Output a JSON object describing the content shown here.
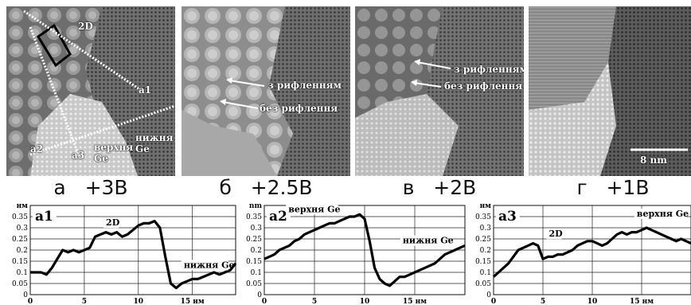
{
  "panels": [
    {
      "id": "a",
      "label": "а   +3В",
      "annotations": {
        "twoD": "2D",
        "a1": "a1",
        "a2": "a2",
        "a3": "a3",
        "upper": "верхня\nGe",
        "lower": "нижня\nGe"
      }
    },
    {
      "id": "b",
      "label": "б   +2.5В",
      "annotations": {
        "with": "з рифленням",
        "without": "без рифлення"
      }
    },
    {
      "id": "v",
      "label": "в   +2В",
      "annotations": {
        "with": "з рифленням",
        "without": "без рифлення"
      }
    },
    {
      "id": "g",
      "label": "г   +1В",
      "annotations": {
        "scale": "8 nm"
      }
    }
  ],
  "chart_data": [
    {
      "type": "line",
      "profile_label": "a1",
      "ylabel": "нм",
      "xunit": "нм",
      "xlim": [
        0,
        19
      ],
      "ylim": [
        0,
        0.4
      ],
      "xticks": [
        {
          "v": 0,
          "t": "0"
        },
        {
          "v": 5,
          "t": "5"
        },
        {
          "v": 10,
          "t": "10"
        },
        {
          "v": 15,
          "t": "15 нм"
        }
      ],
      "yticks": [
        {
          "v": 0,
          "t": "0"
        },
        {
          "v": 0.05,
          "t": "0.05"
        },
        {
          "v": 0.1,
          "t": "0.1"
        },
        {
          "v": 0.15,
          "t": "0.15"
        },
        {
          "v": 0.2,
          "t": "0.2"
        },
        {
          "v": 0.25,
          "t": "0.25"
        },
        {
          "v": 0.3,
          "t": "0.3"
        },
        {
          "v": 0.35,
          "t": "0.35"
        },
        {
          "v": 0.4,
          "t": "нм"
        }
      ],
      "annotations": [
        {
          "text": "2D",
          "x": 7,
          "y": 0.31
        },
        {
          "text": "нижня Ge",
          "x": 14.2,
          "y": 0.12
        }
      ],
      "x": [
        0,
        0.5,
        1,
        1.5,
        2,
        2.5,
        3,
        3.5,
        4,
        4.5,
        5,
        5.5,
        6,
        6.5,
        7,
        7.5,
        8,
        8.5,
        9,
        9.5,
        10,
        10.5,
        11,
        11.5,
        12,
        12.5,
        13,
        13.5,
        14,
        14.5,
        15,
        15.5,
        16,
        16.5,
        17,
        17.5,
        18,
        18.5,
        19
      ],
      "values": [
        0.1,
        0.1,
        0.1,
        0.09,
        0.12,
        0.16,
        0.2,
        0.19,
        0.2,
        0.19,
        0.2,
        0.21,
        0.26,
        0.27,
        0.28,
        0.27,
        0.28,
        0.26,
        0.27,
        0.29,
        0.31,
        0.32,
        0.32,
        0.33,
        0.3,
        0.17,
        0.05,
        0.03,
        0.05,
        0.06,
        0.07,
        0.07,
        0.08,
        0.09,
        0.1,
        0.09,
        0.1,
        0.11,
        0.14
      ]
    },
    {
      "type": "line",
      "profile_label": "a2",
      "ylabel": "nm",
      "xunit": "нм",
      "xlim": [
        0,
        20
      ],
      "ylim": [
        0,
        0.4
      ],
      "xticks": [
        {
          "v": 0,
          "t": "0"
        },
        {
          "v": 5,
          "t": "5"
        },
        {
          "v": 10,
          "t": "10"
        },
        {
          "v": 15,
          "t": "15 нм"
        }
      ],
      "yticks": [
        {
          "v": 0,
          "t": "0"
        },
        {
          "v": 0.05,
          "t": "0.05"
        },
        {
          "v": 0.1,
          "t": "0.1"
        },
        {
          "v": 0.15,
          "t": "0.15"
        },
        {
          "v": 0.2,
          "t": "0.2"
        },
        {
          "v": 0.25,
          "t": "0.25"
        },
        {
          "v": 0.3,
          "t": "0.3"
        },
        {
          "v": 0.35,
          "t": "0.35"
        },
        {
          "v": 0.4,
          "t": "nm"
        }
      ],
      "annotations": [
        {
          "text": "верхня Ge",
          "x": 2.4,
          "y": 0.37
        },
        {
          "text": "нижня Ge",
          "x": 13.8,
          "y": 0.23
        }
      ],
      "x": [
        0,
        0.5,
        1,
        1.5,
        2,
        2.5,
        3,
        3.5,
        4,
        4.5,
        5,
        5.5,
        6,
        6.5,
        7,
        7.5,
        8,
        8.5,
        9,
        9.5,
        10,
        10.5,
        11,
        11.5,
        12,
        12.5,
        13,
        13.5,
        14,
        14.5,
        15,
        15.5,
        16,
        16.5,
        17,
        17.5,
        18,
        18.5,
        19,
        19.5,
        20
      ],
      "values": [
        0.16,
        0.17,
        0.18,
        0.2,
        0.21,
        0.22,
        0.24,
        0.25,
        0.27,
        0.28,
        0.29,
        0.3,
        0.31,
        0.32,
        0.32,
        0.33,
        0.34,
        0.35,
        0.35,
        0.36,
        0.34,
        0.24,
        0.12,
        0.07,
        0.05,
        0.04,
        0.06,
        0.08,
        0.08,
        0.09,
        0.1,
        0.11,
        0.12,
        0.13,
        0.14,
        0.16,
        0.18,
        0.19,
        0.2,
        0.21,
        0.22
      ]
    },
    {
      "type": "line",
      "profile_label": "a3",
      "ylabel": "нм",
      "xunit": "нм",
      "xlim": [
        0,
        20
      ],
      "ylim": [
        0,
        0.4
      ],
      "xticks": [
        {
          "v": 0,
          "t": "0"
        },
        {
          "v": 5,
          "t": "5"
        },
        {
          "v": 10,
          "t": "10"
        },
        {
          "v": 15,
          "t": "15 нм"
        }
      ],
      "yticks": [
        {
          "v": 0,
          "t": "0"
        },
        {
          "v": 0.05,
          "t": "0.05"
        },
        {
          "v": 0.1,
          "t": "0.1"
        },
        {
          "v": 0.15,
          "t": "0.15"
        },
        {
          "v": 0.2,
          "t": "0.2"
        },
        {
          "v": 0.25,
          "t": "0.25"
        },
        {
          "v": 0.3,
          "t": "0.3"
        },
        {
          "v": 0.35,
          "t": "0.35"
        },
        {
          "v": 0.4,
          "t": "нм"
        }
      ],
      "annotations": [
        {
          "text": "2D",
          "x": 5.6,
          "y": 0.26
        },
        {
          "text": "верхня Ge",
          "x": 14.5,
          "y": 0.35
        }
      ],
      "x": [
        0,
        0.5,
        1,
        1.5,
        2,
        2.5,
        3,
        3.5,
        4,
        4.5,
        5,
        5.5,
        6,
        6.5,
        7,
        7.5,
        8,
        8.5,
        9,
        9.5,
        10,
        10.5,
        11,
        11.5,
        12,
        12.5,
        13,
        13.5,
        14,
        14.5,
        15,
        15.5,
        16,
        16.5,
        17,
        17.5,
        18,
        18.5,
        19,
        19.5,
        20
      ],
      "values": [
        0.08,
        0.1,
        0.12,
        0.14,
        0.17,
        0.2,
        0.21,
        0.22,
        0.23,
        0.22,
        0.16,
        0.17,
        0.17,
        0.18,
        0.18,
        0.19,
        0.2,
        0.22,
        0.23,
        0.24,
        0.24,
        0.23,
        0.22,
        0.23,
        0.25,
        0.27,
        0.28,
        0.27,
        0.28,
        0.28,
        0.29,
        0.3,
        0.29,
        0.28,
        0.27,
        0.26,
        0.25,
        0.24,
        0.25,
        0.24,
        0.23
      ]
    }
  ]
}
